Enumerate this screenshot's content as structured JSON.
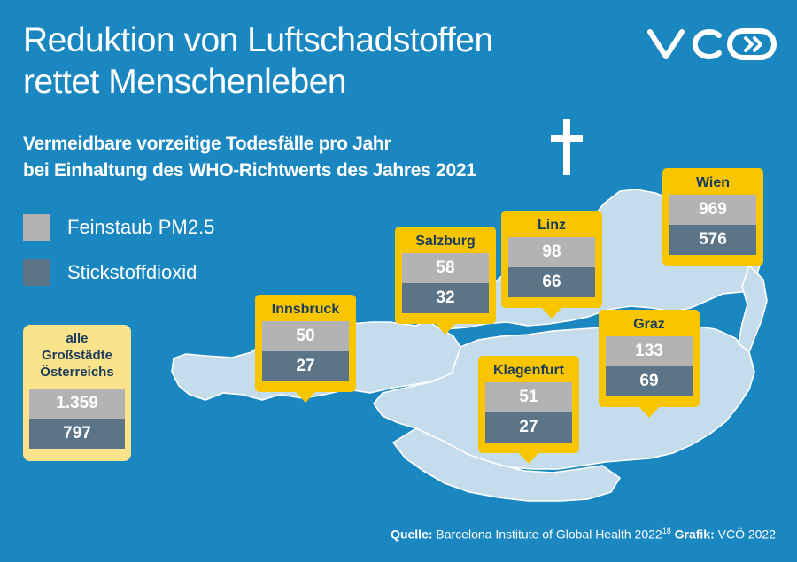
{
  "title_line1": "Reduktion von Luftschadstoffen",
  "title_line2": "rettet Menschenleben",
  "subtitle_line1": "Vermeidbare vorzeitige Todesfälle pro Jahr",
  "subtitle_line2": "bei Einhaltung des WHO-Richtwerts des Jahres 2021",
  "logo_text": "VCÖ",
  "colors": {
    "background": "#1a87c1",
    "map": "#c4dcec",
    "callout": "#f7c600",
    "total_box": "#fbe38b",
    "pm25": "#b3b3b3",
    "no2": "#5b7488"
  },
  "chart_data": {
    "type": "table",
    "series": [
      {
        "name": "Feinstaub PM2.5",
        "values": [
          50,
          58,
          98,
          969,
          51,
          133
        ]
      },
      {
        "name": "Stickstoffdioxid",
        "values": [
          27,
          32,
          66,
          576,
          27,
          69
        ]
      }
    ],
    "categories": [
      "Innsbruck",
      "Salzburg",
      "Linz",
      "Wien",
      "Klagenfurt",
      "Graz"
    ],
    "cities": [
      {
        "name": "Innsbruck",
        "pm25": "50",
        "no2": "27"
      },
      {
        "name": "Salzburg",
        "pm25": "58",
        "no2": "32"
      },
      {
        "name": "Linz",
        "pm25": "98",
        "no2": "66"
      },
      {
        "name": "Wien",
        "pm25": "969",
        "no2": "576"
      },
      {
        "name": "Klagenfurt",
        "pm25": "51",
        "no2": "27"
      },
      {
        "name": "Graz",
        "pm25": "133",
        "no2": "69"
      }
    ],
    "total": {
      "line1": "alle",
      "line2": "Großstädte",
      "line3": "Österreichs",
      "pm25": "1.359",
      "no2": "797"
    },
    "legend": [
      {
        "label": "Feinstaub PM2.5",
        "color": "#b3b3b3"
      },
      {
        "label": "Stickstoffdioxid",
        "color": "#5b7488"
      }
    ]
  },
  "source": {
    "label": "Quelle:",
    "text": "Barcelona Institute of Global Health 2022",
    "ref": "18",
    "graphic_label": "Grafik:",
    "graphic_text": "VCÖ 2022"
  }
}
